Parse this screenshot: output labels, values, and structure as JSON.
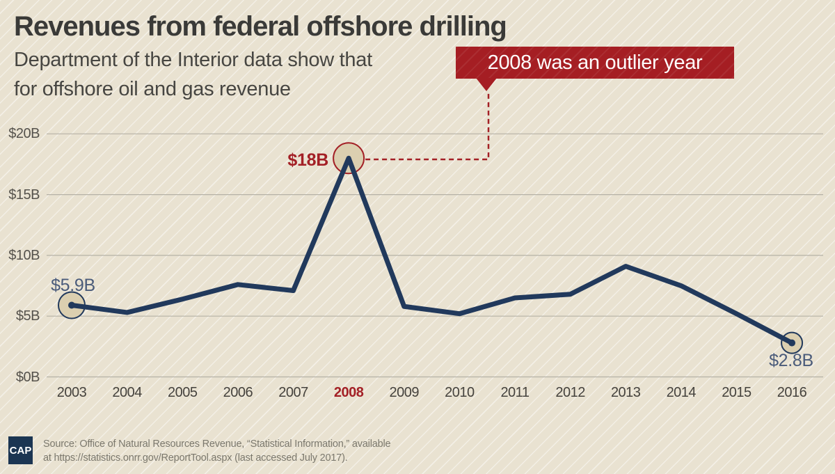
{
  "header": {
    "title": "Revenues from federal offshore drilling",
    "subtitle_before": "Department of the Interior data show that",
    "callout": "2008 was an outlier year",
    "subtitle_line2": "for offshore oil and gas revenue"
  },
  "chart_data": {
    "type": "line",
    "title": "Revenues from federal offshore drilling",
    "x": [
      2003,
      2004,
      2005,
      2006,
      2007,
      2008,
      2009,
      2010,
      2011,
      2012,
      2013,
      2014,
      2015,
      2016
    ],
    "values": [
      5.9,
      5.3,
      6.4,
      7.6,
      7.1,
      18,
      5.8,
      5.2,
      6.5,
      6.8,
      9.1,
      7.5,
      5.2,
      2.8
    ],
    "units": "billions USD",
    "ylim": [
      0,
      20
    ],
    "yticks": [
      0,
      5,
      10,
      15,
      20
    ],
    "ytick_labels": [
      "$0B",
      "$5B",
      "$10B",
      "$15B",
      "$20B"
    ],
    "grid": "horizontal",
    "highlight_year": 2008,
    "line_color": "#21395c",
    "red": "#a32026",
    "grid_color": "#b5b1a6",
    "marker_fill": "#dbcfb0",
    "annotations": [
      {
        "year": 2003,
        "value": 5.9,
        "label": "$5.9B",
        "r": 19,
        "ring": "navy",
        "dot": true
      },
      {
        "year": 2008,
        "value": 18,
        "label": "$18B",
        "r": 22,
        "ring": "red",
        "dot": false
      },
      {
        "year": 2016,
        "value": 2.8,
        "label": "$2.8B",
        "r": 15,
        "ring": "navy",
        "dot": true
      }
    ]
  },
  "footer": {
    "logo": "CAP",
    "source_lines": [
      "Source: Office of Natural Resources Revenue, “Statistical Information,” available",
      "at https://statistics.onrr.gov/ReportTool.aspx (last accessed July 2017)."
    ]
  }
}
